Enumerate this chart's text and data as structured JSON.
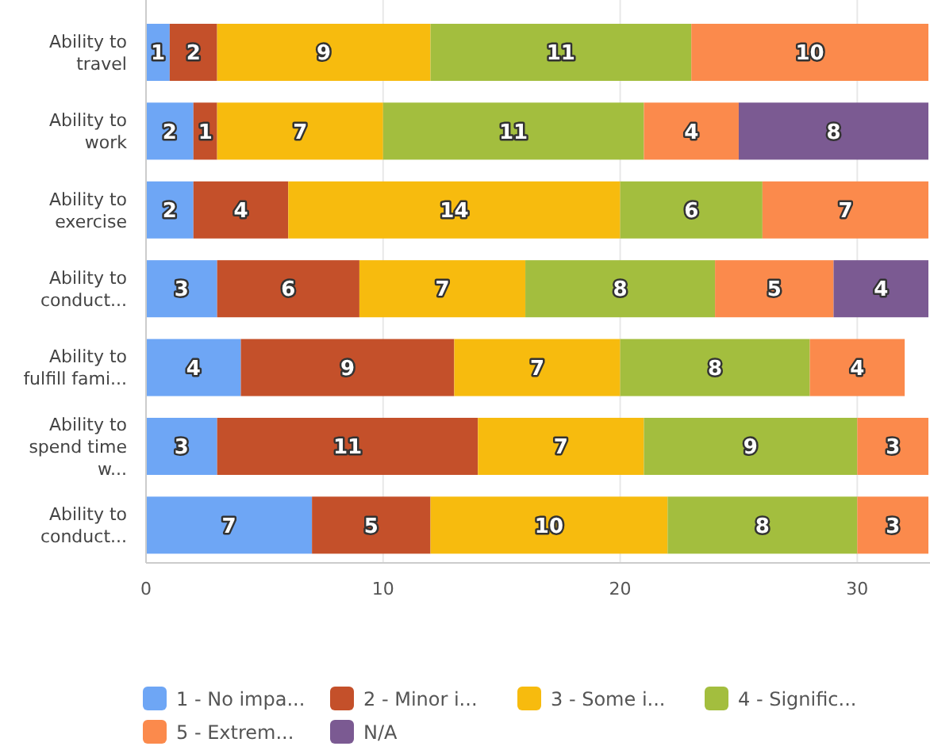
{
  "chart_data": {
    "type": "bar",
    "orientation": "horizontal",
    "stacked": true,
    "data_labels": true,
    "grid": "x",
    "legend": "bottom",
    "categories": [
      "Ability to\ntravel",
      "Ability to\nwork",
      "Ability to\nexercise",
      "Ability to\nconduct...",
      "Ability to\nfulfill fami...",
      "Ability to\nspend time\nw...",
      "Ability to\nconduct..."
    ],
    "xlim": [
      0,
      33
    ],
    "xticks": [
      0,
      10,
      20,
      30
    ],
    "series": [
      {
        "name": "1 - No impa...",
        "color": "#6ea6f5",
        "values": [
          1,
          2,
          2,
          3,
          4,
          3,
          7
        ]
      },
      {
        "name": "2 - Minor i...",
        "color": "#c4502a",
        "values": [
          2,
          1,
          4,
          6,
          9,
          11,
          5
        ]
      },
      {
        "name": "3 - Some i...",
        "color": "#f7bb0e",
        "values": [
          9,
          7,
          14,
          7,
          7,
          7,
          10
        ]
      },
      {
        "name": "4 - Signific...",
        "color": "#a3be3e",
        "values": [
          11,
          11,
          6,
          8,
          8,
          9,
          8
        ]
      },
      {
        "name": "5 - Extrem...",
        "color": "#fb8a4c",
        "values": [
          10,
          4,
          7,
          5,
          4,
          3,
          3
        ]
      },
      {
        "name": "N/A",
        "color": "#7b5a92",
        "values": [
          null,
          8,
          null,
          4,
          null,
          null,
          null
        ]
      }
    ]
  }
}
